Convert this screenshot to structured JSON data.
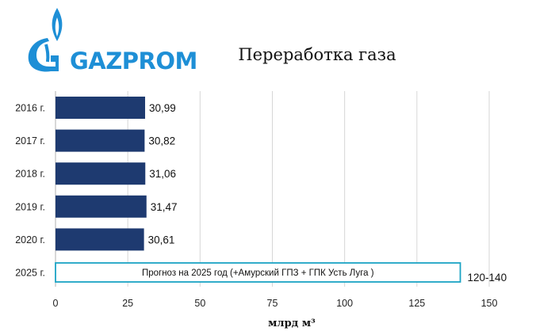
{
  "logo": {
    "text": "GAZPROM"
  },
  "colors": {
    "bar": "#1e3a70",
    "forecast_border": "#1ba3c4",
    "brand": "#1e8fd6",
    "grid": "#d6d6d6"
  },
  "chart_data": {
    "type": "bar",
    "orientation": "horizontal",
    "title": "Переработка газа",
    "xlabel": "млрд м³",
    "ylabel": "",
    "xlim": [
      0,
      150
    ],
    "xticks": [
      0,
      25,
      50,
      75,
      100,
      125,
      150
    ],
    "categories": [
      "2016 г.",
      "2017 г.",
      "2018 г.",
      "2019 г.",
      "2020 г.",
      "2025 г."
    ],
    "values": [
      30.99,
      30.82,
      31.06,
      31.47,
      30.61,
      140
    ],
    "value_labels": [
      "30,99",
      "30,82",
      "31,06",
      "31,47",
      "30,61",
      "120-140"
    ],
    "forecast": {
      "category": "2025 г.",
      "range": [
        120,
        140
      ],
      "label": "Прогноз на 2025 год (+Амурский ГПЗ + ГПК Усть Луга )"
    },
    "grid": true,
    "legend": "none"
  }
}
